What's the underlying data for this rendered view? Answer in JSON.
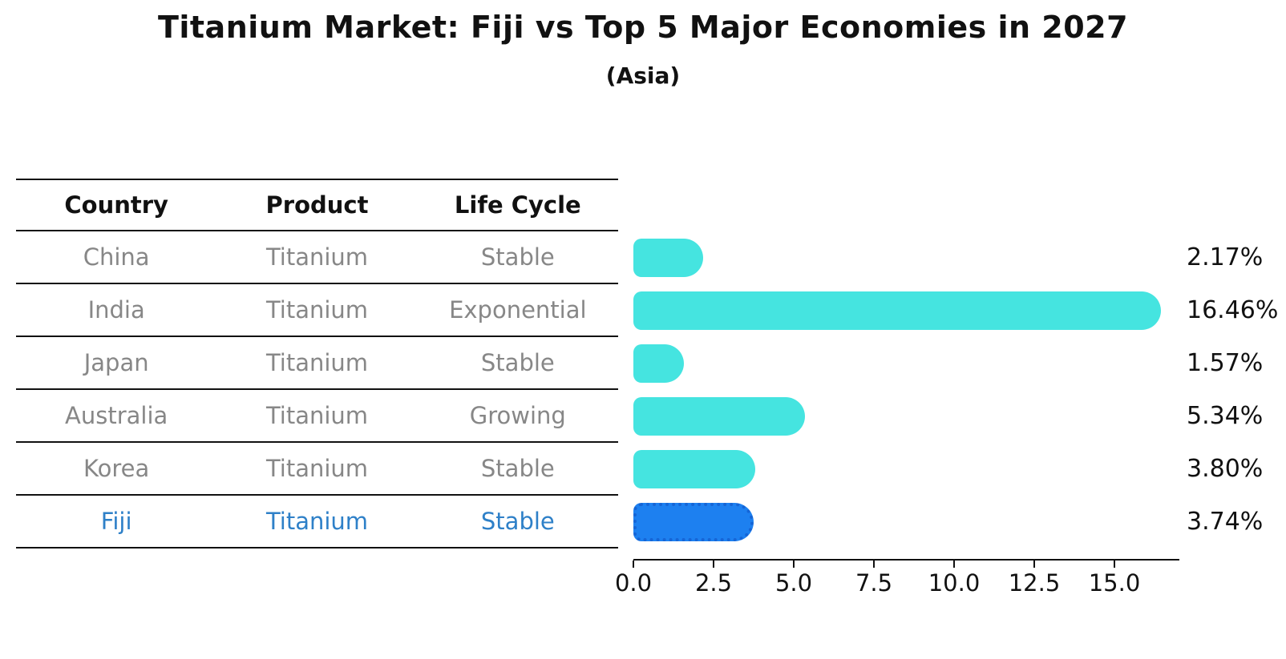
{
  "header": {
    "title": "Titanium Market: Fiji vs Top 5 Major Economies in 2027",
    "subtitle": "(Asia)"
  },
  "table": {
    "columns": [
      "Country",
      "Product",
      "Life Cycle"
    ],
    "rows": [
      {
        "country": "China",
        "product": "Titanium",
        "life_cycle": "Stable",
        "highlight": false
      },
      {
        "country": "India",
        "product": "Titanium",
        "life_cycle": "Exponential",
        "highlight": false
      },
      {
        "country": "Japan",
        "product": "Titanium",
        "life_cycle": "Stable",
        "highlight": false
      },
      {
        "country": "Australia",
        "product": "Titanium",
        "life_cycle": "Growing",
        "highlight": false
      },
      {
        "country": "Korea",
        "product": "Titanium",
        "life_cycle": "Stable",
        "highlight": false
      },
      {
        "country": "Fiji",
        "product": "Titanium",
        "life_cycle": "Stable",
        "highlight": true
      }
    ]
  },
  "chart_data": {
    "type": "bar",
    "orientation": "horizontal",
    "title": "Titanium Market: Fiji vs Top 5 Major Economies in 2027",
    "subtitle": "(Asia)",
    "categories": [
      "China",
      "India",
      "Japan",
      "Australia",
      "Korea",
      "Fiji"
    ],
    "values": [
      2.17,
      16.46,
      1.57,
      5.34,
      3.8,
      3.74
    ],
    "value_labels": [
      "2.17%",
      "16.46%",
      "1.57%",
      "5.34%",
      "3.80%",
      "3.74%"
    ],
    "highlight_index": 5,
    "x_ticks": [
      0.0,
      2.5,
      5.0,
      7.5,
      10.0,
      12.5,
      15.0
    ],
    "x_tick_labels": [
      "0.0",
      "2.5",
      "5.0",
      "7.5",
      "10.0",
      "12.5",
      "15.0"
    ],
    "xlim": [
      0,
      17.0
    ],
    "grid": false,
    "legend": "none",
    "colors": {
      "bar": "#45e4e0",
      "highlight_bar": "#1d80f0",
      "highlight_border": "#1565d6",
      "highlight_text": "#2e80c8",
      "cell_text": "#878787",
      "axis": "#111111"
    }
  }
}
